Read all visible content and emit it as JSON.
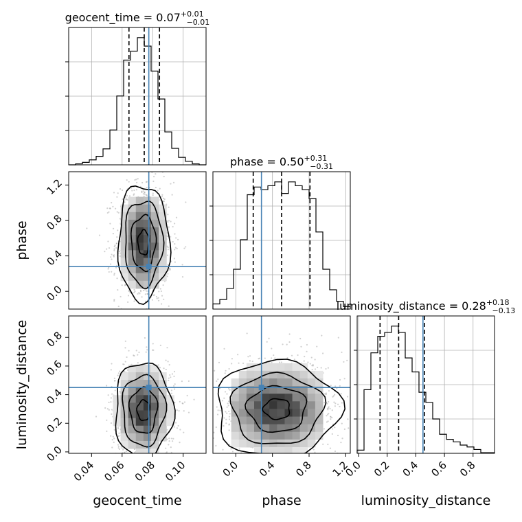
{
  "chart_data": {
    "type": "corner",
    "parameters": [
      {
        "name": "geocent_time",
        "label": "geocent_time",
        "title": "geocent_time = 0.07",
        "title_sup": "+0.01",
        "title_sub": "−0.01",
        "median": 0.07,
        "quantile_lines": [
          0.0645,
          0.0745,
          0.0845
        ],
        "truth": 0.0775,
        "range": [
          0.025,
          0.115
        ],
        "ticks": [
          0.04,
          0.06,
          0.08,
          0.1
        ],
        "tick_labels": [
          "0.04",
          "0.06",
          "0.08",
          "0.10"
        ],
        "hist": {
          "bin_edges": [
            0.025,
            0.0295,
            0.034,
            0.0385,
            0.043,
            0.0475,
            0.052,
            0.0565,
            0.061,
            0.0655,
            0.07,
            0.0745,
            0.079,
            0.0835,
            0.088,
            0.0925,
            0.097,
            0.1015,
            0.106,
            0.1105,
            0.115
          ],
          "counts": [
            0,
            2,
            5,
            10,
            17,
            32,
            70,
            138,
            210,
            228,
            255,
            238,
            188,
            132,
            66,
            33,
            15,
            7,
            2,
            0
          ]
        }
      },
      {
        "name": "phase",
        "label": "phase",
        "title": "phase = 0.50",
        "title_sup": "+0.31",
        "title_sub": "−0.31",
        "median": 0.5,
        "quantile_lines": [
          0.19,
          0.5,
          0.81
        ],
        "truth": 0.28,
        "range": [
          -0.25,
          1.25
        ],
        "ticks": [
          0.0,
          0.4,
          0.8,
          1.2
        ],
        "tick_labels": [
          "0.0",
          "0.4",
          "0.8",
          "1.2"
        ],
        "hist": {
          "bin_edges": [
            -0.25,
            -0.175,
            -0.1,
            -0.025,
            0.05,
            0.125,
            0.2,
            0.275,
            0.35,
            0.425,
            0.5,
            0.575,
            0.65,
            0.725,
            0.8,
            0.875,
            0.95,
            1.025,
            1.1,
            1.175,
            1.25
          ],
          "counts": [
            8,
            15,
            32,
            62,
            108,
            178,
            190,
            186,
            192,
            198,
            180,
            198,
            192,
            186,
            172,
            120,
            62,
            30,
            12,
            4
          ]
        }
      },
      {
        "name": "luminosity_distance",
        "label": "luminosity_distance",
        "title": "luminosity_distance = 0.28",
        "title_sup": "+0.18",
        "title_sub": "−0.13",
        "median": 0.28,
        "quantile_lines": [
          0.15,
          0.28,
          0.46
        ],
        "truth": 0.45,
        "range": [
          -0.01,
          0.95
        ],
        "ticks": [
          0.0,
          0.2,
          0.4,
          0.6,
          0.8
        ],
        "tick_labels": [
          "0.0",
          "0.2",
          "0.4",
          "0.6",
          "0.8"
        ],
        "hist": {
          "bin_edges": [
            -0.01,
            0.038,
            0.086,
            0.134,
            0.182,
            0.23,
            0.278,
            0.326,
            0.374,
            0.422,
            0.47,
            0.518,
            0.566,
            0.614,
            0.662,
            0.71,
            0.758,
            0.806,
            0.854,
            0.902,
            0.95
          ],
          "counts": [
            5,
            100,
            158,
            184,
            190,
            200,
            190,
            150,
            128,
            96,
            80,
            54,
            30,
            22,
            18,
            13,
            10,
            6,
            1,
            1
          ]
        }
      }
    ],
    "off_diagonal": [
      {
        "x": "geocent_time",
        "y": "phase",
        "center": [
          0.074,
          0.55
        ],
        "sigma": [
          0.008,
          0.31
        ],
        "truth": [
          0.0775,
          0.28
        ],
        "y_range": [
          -0.2,
          1.35
        ]
      },
      {
        "x": "geocent_time",
        "y": "luminosity_distance",
        "center": [
          0.074,
          0.29
        ],
        "sigma": [
          0.009,
          0.16
        ],
        "truth": [
          0.0775,
          0.45
        ],
        "y_range": [
          -0.01,
          0.95
        ]
      },
      {
        "x": "phase",
        "y": "luminosity_distance",
        "center": [
          0.45,
          0.3
        ],
        "sigma": [
          0.32,
          0.16
        ],
        "truth": [
          0.28,
          0.45
        ],
        "y_range": [
          -0.01,
          0.95
        ]
      }
    ],
    "y_ticks_phase": [
      0.0,
      0.4,
      0.8,
      1.2
    ],
    "y_tick_labels_phase": [
      "0.0",
      "0.4",
      "0.8",
      "1.2"
    ],
    "y_ticks_luminosity_distance": [
      0.0,
      0.2,
      0.4,
      0.6,
      0.8
    ],
    "y_tick_labels_luminosity_distance": [
      "0.0",
      "0.2",
      "0.4",
      "0.6",
      "0.8"
    ],
    "truth_color": "#4682b4",
    "line_color": "#000000",
    "grid": true
  }
}
